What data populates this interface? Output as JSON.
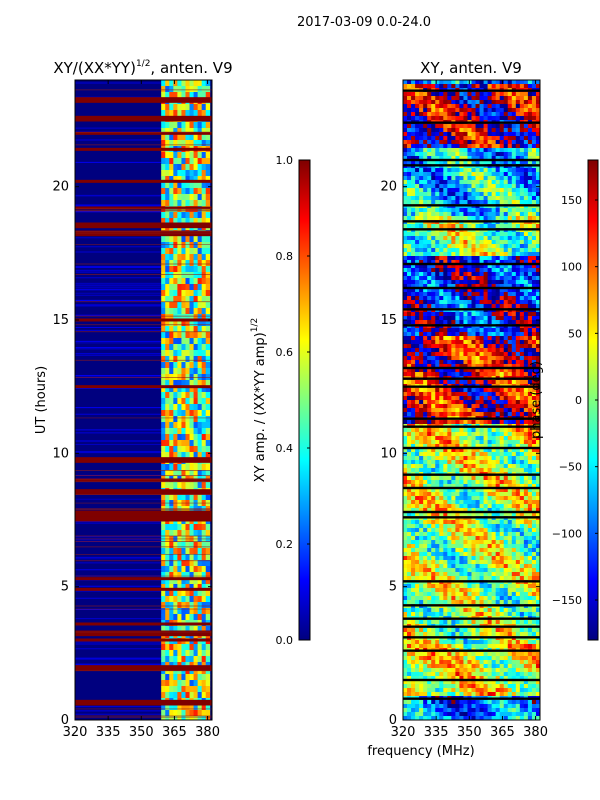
{
  "suptitle": "2017-03-09 0.0-24.0",
  "colors": {
    "jet": [
      "#00007f",
      "#0000ff",
      "#007fff",
      "#00ffff",
      "#7fff7f",
      "#ffff00",
      "#ff7f00",
      "#ff0000",
      "#7f0000"
    ]
  },
  "chart_data": [
    {
      "type": "heatmap",
      "id": "amp",
      "title_main": "XY/(XX*YY)",
      "title_exp": "1/2",
      "title_rest": ", anten. V9",
      "xlabel": "",
      "ylabel": "UT (hours)",
      "xlim": [
        320,
        382
      ],
      "ylim": [
        0,
        24
      ],
      "xticks": [
        320,
        335,
        350,
        365,
        380
      ],
      "yticks": [
        0,
        5,
        10,
        15,
        20
      ],
      "colorbar": {
        "label_main": "XY amp. / (XX*YY amp)",
        "label_exp": "1/2",
        "range": [
          0.0,
          1.0
        ],
        "ticks": [
          0.0,
          0.2,
          0.4,
          0.6,
          0.8,
          1.0
        ],
        "tick_labels": [
          "0.0",
          "0.2",
          "0.4",
          "0.6",
          "0.8",
          "1.0"
        ]
      },
      "saturated_hours": [
        0.6,
        0.7,
        1.9,
        2.0,
        3.0,
        3.2,
        3.3,
        3.6,
        4.9,
        5.3,
        7.5,
        7.6,
        7.7,
        7.8,
        8.5,
        8.6,
        9.0,
        9.7,
        9.8,
        12.5,
        15.0,
        18.2,
        18.3,
        18.5,
        18.6,
        19.2,
        20.2,
        21.4,
        22.0,
        22.5,
        22.6,
        23.2,
        23.3
      ],
      "rfi_band_mhz": [
        359,
        381
      ]
    },
    {
      "type": "heatmap",
      "id": "phase",
      "title": "XY, anten. V9",
      "xlabel": "frequency (MHz)",
      "ylabel": "",
      "xlim": [
        320,
        382
      ],
      "ylim": [
        0,
        24
      ],
      "xticks": [
        320,
        335,
        350,
        365,
        380
      ],
      "yticks": [
        0,
        5,
        10,
        15,
        20
      ],
      "colorbar": {
        "label": "phase (deg)",
        "range": [
          -180,
          180
        ],
        "ticks": [
          -150,
          -100,
          -50,
          0,
          50,
          100,
          150
        ],
        "tick_labels": [
          "−150",
          "−100",
          "−50",
          "0",
          "50",
          "100",
          "150"
        ]
      },
      "phase_bands": [
        {
          "from": 0.0,
          "to": 1.0,
          "phase": -90
        },
        {
          "from": 1.0,
          "to": 3.0,
          "phase": 40
        },
        {
          "from": 3.0,
          "to": 7.5,
          "phase": 10
        },
        {
          "from": 7.5,
          "to": 10.0,
          "phase": 20
        },
        {
          "from": 10.0,
          "to": 11.2,
          "phase": 30
        },
        {
          "from": 11.2,
          "to": 14.5,
          "phase": 150
        },
        {
          "from": 14.5,
          "to": 17.5,
          "phase": -140
        },
        {
          "from": 17.5,
          "to": 19.0,
          "phase": 0
        },
        {
          "from": 19.0,
          "to": 21.5,
          "phase": -60
        },
        {
          "from": 21.5,
          "to": 24.0,
          "phase": 170
        }
      ],
      "gap_hours": [
        0.8,
        1.5,
        2.6,
        3.1,
        3.5,
        3.8,
        4.3,
        5.2,
        7.6,
        7.8,
        8.7,
        9.2,
        10.2,
        11.0,
        11.3,
        12.5,
        12.8,
        13.2,
        14.8,
        15.4,
        16.2,
        17.1,
        18.4,
        18.7,
        19.3,
        20.8,
        21.0,
        22.4,
        23.6
      ]
    }
  ]
}
